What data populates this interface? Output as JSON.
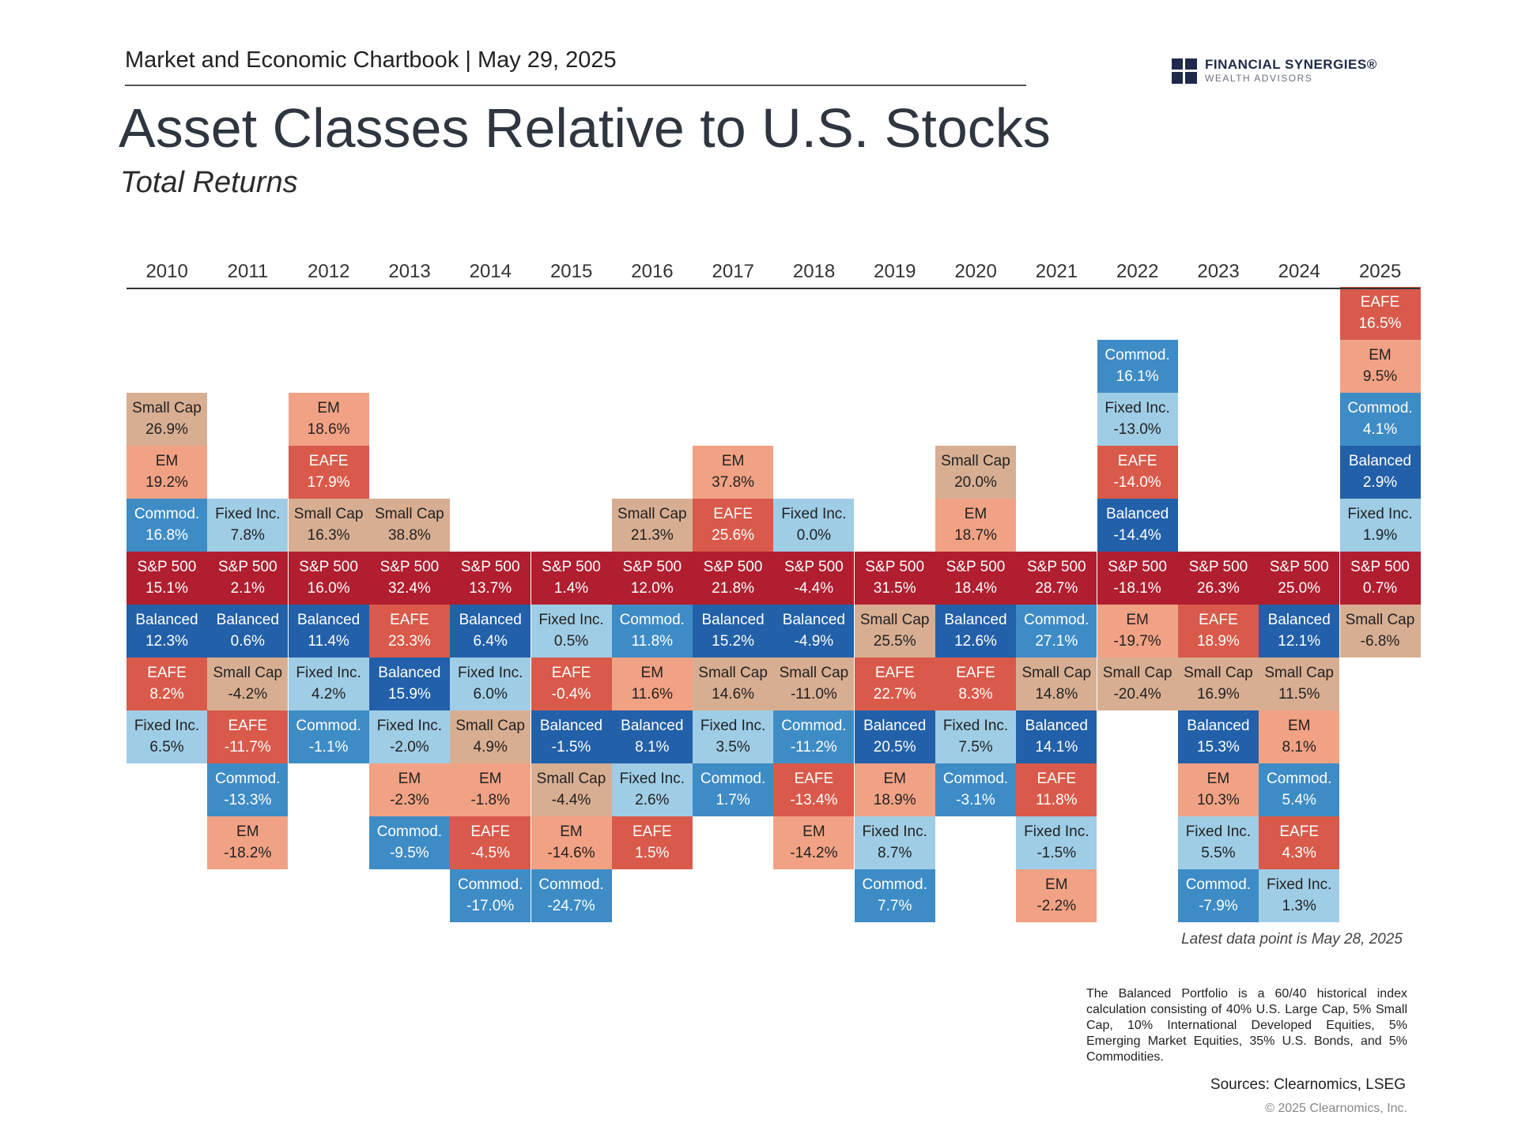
{
  "header": {
    "chartbook": "Market and Economic Chartbook | May 29, 2025"
  },
  "logo": {
    "name": "FINANCIAL SYNERGIES®",
    "sub": "WEALTH ADVISORS",
    "color": "#1f2a4a"
  },
  "colors": {
    "S&P 500": "#b01e2f",
    "EAFE": "#d95a4a",
    "EM": "#f2a284",
    "Small Cap": "#d8ae92",
    "Fixed Inc.": "#9fcde6",
    "Commod.": "#3e8cc6",
    "Balanced": "#2260a9"
  },
  "notes": {
    "latest": "Latest data point is May 28, 2025",
    "footnote": "The Balanced Portfolio is a 60/40 historical index calculation consisting of 40% U.S. Large Cap, 5% Small Cap, 10% International Developed Equities, 5% Emerging Market Equities, 35% U.S. Bonds, and 5% Commodities.",
    "sources": "Sources: Clearnomics, LSEG",
    "copyright": "© 2025 Clearnomics, Inc."
  },
  "chart_data": {
    "type": "table",
    "title": "Asset Classes Relative to U.S. Stocks",
    "subtitle": "Total Returns",
    "years": [
      "2010",
      "2011",
      "2012",
      "2013",
      "2014",
      "2015",
      "2016",
      "2017",
      "2018",
      "2019",
      "2020",
      "2021",
      "2022",
      "2023",
      "2024",
      "2025"
    ],
    "baseline": "S&P 500",
    "columns": [
      {
        "year": "2010",
        "above": [
          [
            "Small Cap",
            "26.9%"
          ],
          [
            "EM",
            "19.2%"
          ],
          [
            "Commod.",
            "16.8%"
          ]
        ],
        "sp500": "15.1%",
        "below": [
          [
            "Balanced",
            "12.3%"
          ],
          [
            "EAFE",
            "8.2%"
          ],
          [
            "Fixed Inc.",
            "6.5%"
          ]
        ]
      },
      {
        "year": "2011",
        "above": [
          [
            "Fixed Inc.",
            "7.8%"
          ]
        ],
        "sp500": "2.1%",
        "below": [
          [
            "Balanced",
            "0.6%"
          ],
          [
            "Small Cap",
            "-4.2%"
          ],
          [
            "EAFE",
            "-11.7%"
          ],
          [
            "Commod.",
            "-13.3%"
          ],
          [
            "EM",
            "-18.2%"
          ]
        ]
      },
      {
        "year": "2012",
        "above": [
          [
            "EM",
            "18.6%"
          ],
          [
            "EAFE",
            "17.9%"
          ],
          [
            "Small Cap",
            "16.3%"
          ]
        ],
        "sp500": "16.0%",
        "below": [
          [
            "Balanced",
            "11.4%"
          ],
          [
            "Fixed Inc.",
            "4.2%"
          ],
          [
            "Commod.",
            "-1.1%"
          ]
        ]
      },
      {
        "year": "2013",
        "above": [
          [
            "Small Cap",
            "38.8%"
          ]
        ],
        "sp500": "32.4%",
        "below": [
          [
            "EAFE",
            "23.3%"
          ],
          [
            "Balanced",
            "15.9%"
          ],
          [
            "Fixed Inc.",
            "-2.0%"
          ],
          [
            "EM",
            "-2.3%"
          ],
          [
            "Commod.",
            "-9.5%"
          ]
        ]
      },
      {
        "year": "2014",
        "above": [],
        "sp500": "13.7%",
        "below": [
          [
            "Balanced",
            "6.4%"
          ],
          [
            "Fixed Inc.",
            "6.0%"
          ],
          [
            "Small Cap",
            "4.9%"
          ],
          [
            "EM",
            "-1.8%"
          ],
          [
            "EAFE",
            "-4.5%"
          ],
          [
            "Commod.",
            "-17.0%"
          ]
        ]
      },
      {
        "year": "2015",
        "above": [],
        "sp500": "1.4%",
        "below": [
          [
            "Fixed Inc.",
            "0.5%"
          ],
          [
            "EAFE",
            "-0.4%"
          ],
          [
            "Balanced",
            "-1.5%"
          ],
          [
            "Small Cap",
            "-4.4%"
          ],
          [
            "EM",
            "-14.6%"
          ],
          [
            "Commod.",
            "-24.7%"
          ]
        ]
      },
      {
        "year": "2016",
        "above": [
          [
            "Small Cap",
            "21.3%"
          ]
        ],
        "sp500": "12.0%",
        "below": [
          [
            "Commod.",
            "11.8%"
          ],
          [
            "EM",
            "11.6%"
          ],
          [
            "Balanced",
            "8.1%"
          ],
          [
            "Fixed Inc.",
            "2.6%"
          ],
          [
            "EAFE",
            "1.5%"
          ]
        ]
      },
      {
        "year": "2017",
        "above": [
          [
            "EM",
            "37.8%"
          ],
          [
            "EAFE",
            "25.6%"
          ]
        ],
        "sp500": "21.8%",
        "below": [
          [
            "Balanced",
            "15.2%"
          ],
          [
            "Small Cap",
            "14.6%"
          ],
          [
            "Fixed Inc.",
            "3.5%"
          ],
          [
            "Commod.",
            "1.7%"
          ]
        ]
      },
      {
        "year": "2018",
        "above": [
          [
            "Fixed Inc.",
            "0.0%"
          ]
        ],
        "sp500": "-4.4%",
        "below": [
          [
            "Balanced",
            "-4.9%"
          ],
          [
            "Small Cap",
            "-11.0%"
          ],
          [
            "Commod.",
            "-11.2%"
          ],
          [
            "EAFE",
            "-13.4%"
          ],
          [
            "EM",
            "-14.2%"
          ]
        ]
      },
      {
        "year": "2019",
        "above": [],
        "sp500": "31.5%",
        "below": [
          [
            "Small Cap",
            "25.5%"
          ],
          [
            "EAFE",
            "22.7%"
          ],
          [
            "Balanced",
            "20.5%"
          ],
          [
            "EM",
            "18.9%"
          ],
          [
            "Fixed Inc.",
            "8.7%"
          ],
          [
            "Commod.",
            "7.7%"
          ]
        ]
      },
      {
        "year": "2020",
        "above": [
          [
            "Small Cap",
            "20.0%"
          ],
          [
            "EM",
            "18.7%"
          ]
        ],
        "sp500": "18.4%",
        "below": [
          [
            "Balanced",
            "12.6%"
          ],
          [
            "EAFE",
            "8.3%"
          ],
          [
            "Fixed Inc.",
            "7.5%"
          ],
          [
            "Commod.",
            "-3.1%"
          ]
        ]
      },
      {
        "year": "2021",
        "above": [],
        "sp500": "28.7%",
        "below": [
          [
            "Commod.",
            "27.1%"
          ],
          [
            "Small Cap",
            "14.8%"
          ],
          [
            "Balanced",
            "14.1%"
          ],
          [
            "EAFE",
            "11.8%"
          ],
          [
            "Fixed Inc.",
            "-1.5%"
          ],
          [
            "EM",
            "-2.2%"
          ]
        ]
      },
      {
        "year": "2022",
        "above": [
          [
            "Commod.",
            "16.1%"
          ],
          [
            "Fixed Inc.",
            "-13.0%"
          ],
          [
            "EAFE",
            "-14.0%"
          ],
          [
            "Balanced",
            "-14.4%"
          ]
        ],
        "sp500": "-18.1%",
        "below": [
          [
            "EM",
            "-19.7%"
          ],
          [
            "Small Cap",
            "-20.4%"
          ]
        ]
      },
      {
        "year": "2023",
        "above": [],
        "sp500": "26.3%",
        "below": [
          [
            "EAFE",
            "18.9%"
          ],
          [
            "Small Cap",
            "16.9%"
          ],
          [
            "Balanced",
            "15.3%"
          ],
          [
            "EM",
            "10.3%"
          ],
          [
            "Fixed Inc.",
            "5.5%"
          ],
          [
            "Commod.",
            "-7.9%"
          ]
        ]
      },
      {
        "year": "2024",
        "above": [],
        "sp500": "25.0%",
        "below": [
          [
            "Balanced",
            "12.1%"
          ],
          [
            "Small Cap",
            "11.5%"
          ],
          [
            "EM",
            "8.1%"
          ],
          [
            "Commod.",
            "5.4%"
          ],
          [
            "EAFE",
            "4.3%"
          ],
          [
            "Fixed Inc.",
            "1.3%"
          ]
        ]
      },
      {
        "year": "2025",
        "above": [
          [
            "EAFE",
            "16.5%"
          ],
          [
            "EM",
            "9.5%"
          ],
          [
            "Commod.",
            "4.1%"
          ],
          [
            "Balanced",
            "2.9%"
          ],
          [
            "Fixed Inc.",
            "1.9%"
          ]
        ],
        "sp500": "0.7%",
        "below": [
          [
            "Small Cap",
            "-6.8%"
          ]
        ]
      }
    ]
  }
}
